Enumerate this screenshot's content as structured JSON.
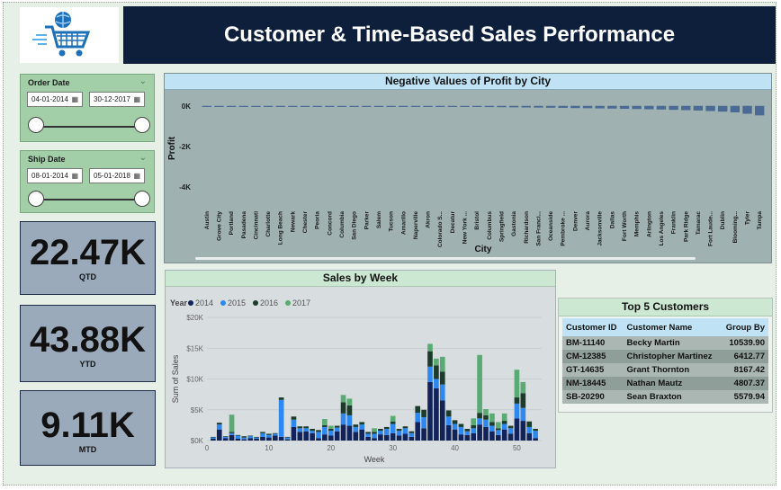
{
  "header": {
    "title": "Customer & Time-Based Sales Performance"
  },
  "logo": {
    "icon": "shopping-cart-globe-icon"
  },
  "order_date": {
    "label": "Order Date",
    "start": "04-01-2014",
    "end": "30-12-2017"
  },
  "ship_date": {
    "label": "Ship Date",
    "start": "08-01-2014",
    "end": "05-01-2018"
  },
  "kpis": {
    "qtd": {
      "value": "22.47K",
      "label": "QTD"
    },
    "ytd": {
      "value": "43.88K",
      "label": "YTD"
    },
    "mtd": {
      "value": "9.11K",
      "label": "MTD"
    }
  },
  "profit_chart": {
    "title": "Negative Values of Profit by City",
    "ylabel": "Profit",
    "xlabel": "City"
  },
  "week_chart": {
    "title": "Sales by Week",
    "legend_title": "Year",
    "xlabel": "Week",
    "ylabel": "Sum of Sales"
  },
  "top_customers": {
    "title": "Top 5 Customers",
    "columns": [
      "Customer ID",
      "Customer Name",
      "Group By"
    ],
    "rows": [
      [
        "BM-11140",
        "Becky Martin",
        "10539.90"
      ],
      [
        "CM-12385",
        "Christopher Martinez",
        "6412.77"
      ],
      [
        "GT-14635",
        "Grant Thornton",
        "8167.42"
      ],
      [
        "NM-18445",
        "Nathan Mautz",
        "4807.37"
      ],
      [
        "SB-20290",
        "Sean Braxton",
        "5579.94"
      ]
    ]
  },
  "chart_data": [
    {
      "type": "bar",
      "title": "Negative Values of Profit by City",
      "xlabel": "City",
      "ylabel": "Profit",
      "ylim": [
        -4500,
        300
      ],
      "yticks": [
        "0K",
        "-2K",
        "-4K"
      ],
      "categories": [
        "Austin",
        "Grove City",
        "Portland",
        "Pasadena",
        "Cincinnati",
        "Charlotte",
        "Long Beach",
        "Newark",
        "Chester",
        "Peoria",
        "Concord",
        "Columbia",
        "San Diego",
        "Parker",
        "Salem",
        "Tucson",
        "Amarillo",
        "Naperville",
        "Akron",
        "Colorado S...",
        "Decatur",
        "New York ...",
        "Bristol",
        "Columbus",
        "Springfield",
        "Gastonia",
        "Richardson",
        "San Franci...",
        "Oceanside",
        "Pembroke ...",
        "Denver",
        "Aurora",
        "Jacksonville",
        "Dallas",
        "Fort Worth",
        "Memphis",
        "Arlington",
        "Los Angeles",
        "Franklin",
        "Park Ridge",
        "Tamarac",
        "Fort Laude...",
        "Dublin",
        "Blooming...",
        "Tyler",
        "Tampa"
      ],
      "values": [
        -2,
        -3,
        -4,
        -5,
        -6,
        -7,
        -8,
        -9,
        -10,
        -12,
        -14,
        -16,
        -18,
        -20,
        -22,
        -25,
        -28,
        -31,
        -35,
        -40,
        -45,
        -50,
        -55,
        -60,
        -66,
        -72,
        -78,
        -85,
        -92,
        -100,
        -108,
        -116,
        -125,
        -135,
        -145,
        -156,
        -168,
        -180,
        -195,
        -212,
        -230,
        -255,
        -285,
        -320,
        -390,
        -470
      ],
      "grid": false
    },
    {
      "type": "bar",
      "title": "Sales by Week",
      "xlabel": "Week",
      "ylabel": "Sum of Sales",
      "ylim": [
        0,
        20000
      ],
      "yticks": [
        "$0K",
        "$5K",
        "$10K",
        "$15K",
        "$20K"
      ],
      "xticks": [
        0,
        10,
        20,
        30,
        40,
        50
      ],
      "legend_title": "Year",
      "legend_position": "top-left",
      "x": [
        1,
        2,
        3,
        4,
        5,
        6,
        7,
        8,
        9,
        10,
        11,
        12,
        13,
        14,
        15,
        16,
        17,
        18,
        19,
        20,
        21,
        22,
        23,
        24,
        25,
        26,
        27,
        28,
        29,
        30,
        31,
        32,
        33,
        34,
        35,
        36,
        37,
        38,
        39,
        40,
        41,
        42,
        43,
        44,
        45,
        46,
        47,
        48,
        49,
        50,
        51,
        52,
        53
      ],
      "series": [
        {
          "name": "2014",
          "color": "#12235a",
          "values": [
            300,
            1800,
            400,
            900,
            300,
            200,
            400,
            300,
            600,
            500,
            800,
            600,
            200,
            2200,
            1400,
            1500,
            1200,
            400,
            1000,
            800,
            1500,
            2600,
            2400,
            1400,
            1800,
            600,
            400,
            1000,
            900,
            1200,
            800,
            1100,
            600,
            3000,
            2000,
            9500,
            8500,
            6500,
            2500,
            1800,
            1000,
            900,
            1200,
            2600,
            2200,
            1500,
            900,
            1800,
            1100,
            3600,
            3200,
            1200,
            400
          ]
        },
        {
          "name": "2015",
          "color": "#2f87f0",
          "values": [
            200,
            800,
            200,
            300,
            500,
            300,
            300,
            200,
            600,
            400,
            300,
            6000,
            300,
            1200,
            600,
            500,
            400,
            1000,
            1200,
            800,
            600,
            1800,
            1700,
            800,
            800,
            500,
            700,
            600,
            1000,
            1500,
            800,
            900,
            600,
            1500,
            1800,
            2500,
            1500,
            2600,
            1400,
            900,
            1200,
            600,
            800,
            1000,
            1200,
            900,
            800,
            900,
            900,
            2400,
            2100,
            1000,
            1200
          ]
        },
        {
          "name": "2016",
          "color": "#1c3b2a",
          "values": [
            100,
            300,
            100,
            200,
            100,
            200,
            100,
            100,
            200,
            200,
            100,
            400,
            100,
            500,
            300,
            300,
            300,
            300,
            300,
            300,
            300,
            1800,
            1600,
            400,
            400,
            300,
            300,
            300,
            300,
            400,
            300,
            300,
            300,
            1100,
            1200,
            2500,
            2200,
            2100,
            1000,
            600,
            500,
            400,
            500,
            900,
            700,
            600,
            300,
            500,
            400,
            1000,
            2400,
            900,
            300
          ]
        },
        {
          "name": "2017",
          "color": "#5aaa73",
          "values": [
            0,
            0,
            0,
            2800,
            0,
            0,
            0,
            0,
            0,
            0,
            0,
            0,
            0,
            0,
            0,
            0,
            0,
            0,
            1000,
            500,
            0,
            1200,
            1100,
            0,
            0,
            0,
            600,
            0,
            0,
            900,
            0,
            0,
            0,
            0,
            0,
            1200,
            1100,
            2400,
            0,
            0,
            0,
            0,
            1100,
            9400,
            1000,
            1400,
            1000,
            1200,
            0,
            4500,
            1800,
            0,
            0
          ]
        }
      ]
    }
  ]
}
